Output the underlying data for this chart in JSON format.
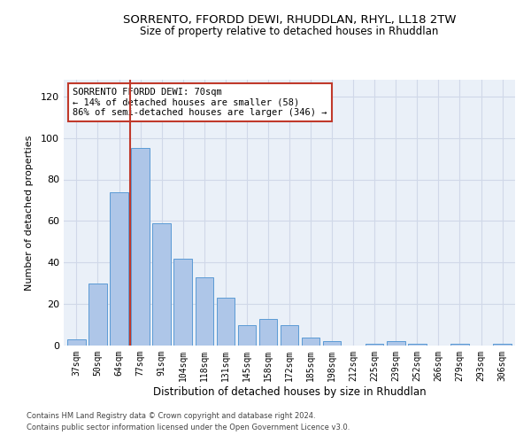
{
  "title1": "SORRENTO, FFORDD DEWI, RHUDDLAN, RHYL, LL18 2TW",
  "title2": "Size of property relative to detached houses in Rhuddlan",
  "xlabel": "Distribution of detached houses by size in Rhuddlan",
  "ylabel": "Number of detached properties",
  "categories": [
    "37sqm",
    "50sqm",
    "64sqm",
    "77sqm",
    "91sqm",
    "104sqm",
    "118sqm",
    "131sqm",
    "145sqm",
    "158sqm",
    "172sqm",
    "185sqm",
    "198sqm",
    "212sqm",
    "225sqm",
    "239sqm",
    "252sqm",
    "266sqm",
    "279sqm",
    "293sqm",
    "306sqm"
  ],
  "values": [
    3,
    30,
    74,
    95,
    59,
    42,
    33,
    23,
    10,
    13,
    10,
    4,
    2,
    0,
    1,
    2,
    1,
    0,
    1,
    0,
    1
  ],
  "bar_color": "#aec6e8",
  "bar_edge_color": "#5b9bd5",
  "vline_x": 2.5,
  "vline_color": "#c0392b",
  "annotation_text": "SORRENTO FFORDD DEWI: 70sqm\n← 14% of detached houses are smaller (58)\n86% of semi-detached houses are larger (346) →",
  "annotation_box_color": "#ffffff",
  "annotation_box_edge": "#c0392b",
  "ylim": [
    0,
    128
  ],
  "yticks": [
    0,
    20,
    40,
    60,
    80,
    100,
    120
  ],
  "grid_color": "#d0d8e8",
  "bg_color": "#eaf0f8",
  "footer1": "Contains HM Land Registry data © Crown copyright and database right 2024.",
  "footer2": "Contains public sector information licensed under the Open Government Licence v3.0."
}
